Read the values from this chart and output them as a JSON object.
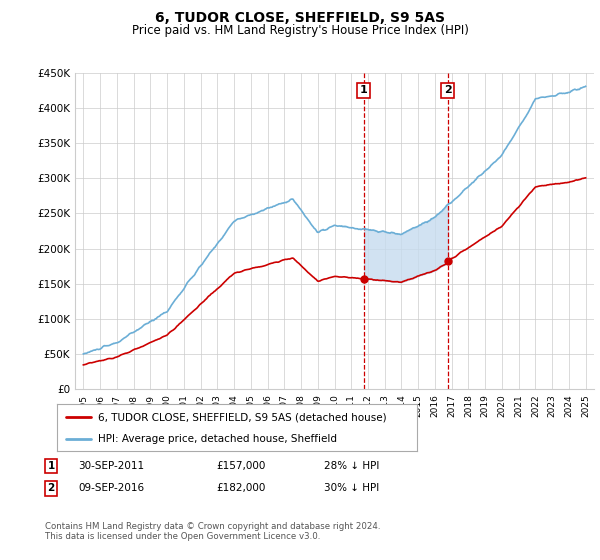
{
  "title": "6, TUDOR CLOSE, SHEFFIELD, S9 5AS",
  "subtitle": "Price paid vs. HM Land Registry's House Price Index (HPI)",
  "hpi_label": "HPI: Average price, detached house, Sheffield",
  "price_label": "6, TUDOR CLOSE, SHEFFIELD, S9 5AS (detached house)",
  "annotation1": {
    "num": "1",
    "date": "30-SEP-2011",
    "price": "£157,000",
    "pct": "28% ↓ HPI",
    "year": 2011.75
  },
  "annotation2": {
    "num": "2",
    "date": "09-SEP-2016",
    "price": "£182,000",
    "pct": "30% ↓ HPI",
    "year": 2016.75
  },
  "footer": "Contains HM Land Registry data © Crown copyright and database right 2024.\nThis data is licensed under the Open Government Licence v3.0.",
  "ylim": [
    0,
    450000
  ],
  "yticks": [
    0,
    50000,
    100000,
    150000,
    200000,
    250000,
    300000,
    350000,
    400000,
    450000
  ],
  "hpi_color": "#6baed6",
  "price_color": "#cc0000",
  "shade_color": "#c6dbef",
  "vline_color": "#cc0000",
  "bg_color": "#ffffff",
  "grid_color": "#cccccc",
  "xlim": [
    1994.5,
    2025.5
  ]
}
